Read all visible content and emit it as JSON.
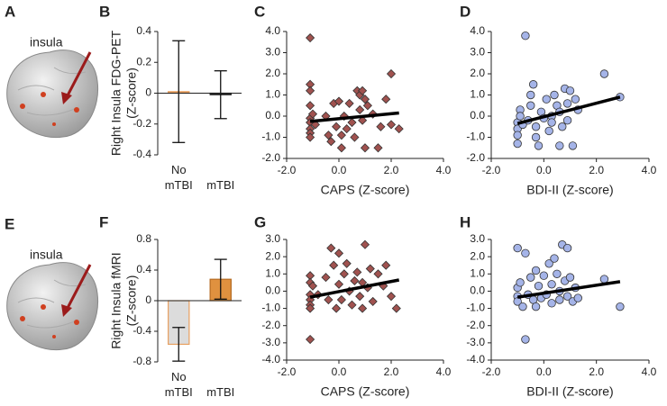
{
  "figure": {
    "brain_panels": [
      {
        "letter": "A",
        "label": "insula"
      },
      {
        "letter": "E",
        "label": "insula"
      }
    ]
  },
  "chart_data": [
    {
      "type": "bar",
      "panel": "B",
      "ylabel": [
        "Right Insula FDG-PET",
        "(Z-score)"
      ],
      "categories": [
        "No mTBI",
        "mTBI"
      ],
      "values": [
        0.01,
        -0.01
      ],
      "errors": [
        0.33,
        0.155
      ],
      "colors": [
        "#e8a060",
        "#222222"
      ],
      "edgecolors": [
        "#e8a060",
        "#222222"
      ],
      "ylim": [
        -0.4,
        0.4
      ],
      "yticks": [
        -0.4,
        -0.2,
        0,
        0.2,
        0.4
      ]
    },
    {
      "type": "scatter",
      "panel": "C",
      "xlabel": "CAPS (Z-score)",
      "marker": "diamond",
      "color": "#a0524f",
      "x": [
        -1.1,
        -1.1,
        -1.1,
        -1.1,
        -1.1,
        -1.1,
        -1.1,
        -1.1,
        -1.1,
        -1.0,
        -0.9,
        -0.5,
        -0.4,
        -0.3,
        -0.2,
        -0.1,
        0.0,
        0.1,
        0.1,
        0.2,
        0.3,
        0.4,
        0.5,
        0.6,
        0.7,
        0.8,
        0.8,
        0.9,
        0.9,
        1.0,
        1.0,
        1.1,
        1.3,
        1.5,
        1.6,
        1.8,
        2.0,
        2.0,
        2.3
      ],
      "values": [
        3.7,
        1.5,
        1.2,
        0.5,
        -0.1,
        -0.3,
        -0.6,
        -0.8,
        -1.0,
        0.1,
        -0.4,
        0.0,
        -0.9,
        -1.2,
        0.6,
        -0.5,
        0.7,
        -0.9,
        -1.5,
        0.0,
        -0.6,
        0.6,
        -0.3,
        -1.0,
        1.2,
        1.0,
        0.3,
        1.2,
        -0.2,
        0.8,
        -1.5,
        0.5,
        0.1,
        -1.5,
        -0.5,
        0.8,
        2.0,
        -0.4,
        -0.6
      ],
      "fit": {
        "x": [
          -1.1,
          2.3
        ],
        "y": [
          -0.25,
          0.15
        ]
      },
      "xlim": [
        -2,
        4
      ],
      "xticks": [
        {
          "value": -2,
          "label": "-2.0"
        },
        {
          "value": 0,
          "label": "0.0"
        },
        {
          "value": 2,
          "label": "2.0"
        },
        {
          "value": 4,
          "label": "4.0"
        }
      ],
      "ylim": [
        -2,
        4
      ],
      "yticks": [
        {
          "value": -2,
          "label": "-2.0"
        },
        {
          "value": -1,
          "label": "-1.0"
        },
        {
          "value": 0,
          "label": "0.0"
        },
        {
          "value": 1,
          "label": "1.0"
        },
        {
          "value": 2,
          "label": "2.0"
        },
        {
          "value": 3,
          "label": "3.0"
        },
        {
          "value": 4,
          "label": "4.0"
        }
      ]
    },
    {
      "type": "scatter",
      "panel": "D",
      "xlabel": "BDI-II (Z-score)",
      "marker": "circle",
      "color": "#a5b4e8",
      "x": [
        -1.0,
        -1.0,
        -1.0,
        -1.0,
        -0.9,
        -0.9,
        -0.8,
        -0.7,
        -0.6,
        -0.5,
        -0.5,
        -0.4,
        -0.3,
        -0.3,
        -0.2,
        -0.1,
        0.0,
        0.1,
        0.2,
        0.3,
        0.3,
        0.4,
        0.5,
        0.6,
        0.6,
        0.7,
        0.8,
        0.9,
        0.9,
        1.0,
        1.1,
        1.2,
        1.3,
        2.3,
        2.9
      ],
      "values": [
        -0.3,
        -0.6,
        -0.9,
        -1.3,
        0.3,
        0.0,
        -0.4,
        3.8,
        -0.2,
        1.0,
        0.5,
        1.5,
        -0.5,
        -1.0,
        -1.4,
        0.2,
        -0.1,
        0.8,
        -0.7,
        0.0,
        -0.3,
        1.0,
        0.5,
        -1.4,
        0.2,
        -0.5,
        1.3,
        0.6,
        -0.2,
        1.2,
        -1.4,
        0.8,
        0.3,
        2.0,
        0.9
      ],
      "fit": {
        "x": [
          -1.0,
          2.9
        ],
        "y": [
          -0.35,
          0.9
        ]
      },
      "xlim": [
        -2,
        4
      ],
      "xticks": [
        {
          "value": -2,
          "label": "-2.0"
        },
        {
          "value": 0,
          "label": "0.0"
        },
        {
          "value": 2,
          "label": "2.0"
        },
        {
          "value": 4,
          "label": "4.0"
        }
      ],
      "ylim": [
        -2,
        4
      ],
      "yticks": [
        {
          "value": -2,
          "label": "-2.0"
        },
        {
          "value": -1,
          "label": "-1.0"
        },
        {
          "value": 0,
          "label": "0.0"
        },
        {
          "value": 1,
          "label": "1.0"
        },
        {
          "value": 2,
          "label": "2.0"
        },
        {
          "value": 3,
          "label": "3.0"
        },
        {
          "value": 4,
          "label": "4.0"
        }
      ]
    },
    {
      "type": "bar",
      "panel": "F",
      "ylabel": [
        "Right Insula fMRI",
        "(Z-score)"
      ],
      "categories": [
        "No mTBI",
        "mTBI"
      ],
      "values": [
        -0.57,
        0.28
      ],
      "errors": [
        0.22,
        0.26
      ],
      "colors": [
        "#dcdcdc",
        "#e0913f"
      ],
      "edgecolors": [
        "#e8a060",
        "#b56c24"
      ],
      "ylim": [
        -0.8,
        0.8
      ],
      "yticks": [
        -0.8,
        -0.4,
        0,
        0.4,
        0.8
      ]
    },
    {
      "type": "scatter",
      "panel": "G",
      "xlabel": "CAPS (Z-score)",
      "marker": "diamond",
      "color": "#a0524f",
      "x": [
        -1.1,
        -1.1,
        -1.1,
        -1.1,
        -1.1,
        -1.1,
        -1.1,
        -1.0,
        -0.8,
        -0.5,
        -0.4,
        -0.3,
        -0.2,
        -0.1,
        0.0,
        0.0,
        0.1,
        0.2,
        0.3,
        0.4,
        0.5,
        0.6,
        0.7,
        0.8,
        0.9,
        0.9,
        1.0,
        1.1,
        1.2,
        1.3,
        1.5,
        1.7,
        1.8,
        2.0,
        2.2
      ],
      "values": [
        0.9,
        0.5,
        -0.2,
        -0.5,
        -0.8,
        -1.0,
        -2.8,
        0.3,
        -0.2,
        0.8,
        -0.5,
        2.5,
        1.5,
        -1.0,
        2.2,
        0.4,
        -0.5,
        1.0,
        1.6,
        0.0,
        -0.8,
        0.6,
        1.1,
        -0.3,
        0.5,
        -1.0,
        2.7,
        0.2,
        1.3,
        -0.6,
        1.0,
        0.3,
        1.5,
        -0.3,
        -1.0
      ],
      "fit": {
        "x": [
          -1.1,
          2.3
        ],
        "y": [
          -0.35,
          0.65
        ]
      },
      "xlim": [
        -2,
        4
      ],
      "xticks": [
        {
          "value": -2,
          "label": "-2.0"
        },
        {
          "value": 0,
          "label": "0.0"
        },
        {
          "value": 2,
          "label": "2.0"
        },
        {
          "value": 4,
          "label": "4.0"
        }
      ],
      "ylim": [
        -4,
        3
      ],
      "yticks": [
        {
          "value": -4,
          "label": "-4.0"
        },
        {
          "value": -3,
          "label": "-3.0"
        },
        {
          "value": -2,
          "label": "-2.0"
        },
        {
          "value": -1,
          "label": "-1.0"
        },
        {
          "value": 0,
          "label": "0.0"
        },
        {
          "value": 1,
          "label": "1.0"
        },
        {
          "value": 2,
          "label": "2.0"
        },
        {
          "value": 3,
          "label": "3.0"
        }
      ]
    },
    {
      "type": "scatter",
      "panel": "H",
      "xlabel": "BDI-II (Z-score)",
      "marker": "circle",
      "color": "#a5b4e8",
      "x": [
        -1.0,
        -1.0,
        -1.0,
        -1.0,
        -0.9,
        -0.8,
        -0.7,
        -0.7,
        -0.6,
        -0.5,
        -0.4,
        -0.3,
        -0.3,
        -0.2,
        -0.1,
        0.0,
        0.1,
        0.2,
        0.3,
        0.3,
        0.4,
        0.5,
        0.6,
        0.6,
        0.7,
        0.8,
        0.9,
        0.9,
        1.0,
        1.1,
        1.2,
        1.3,
        2.3,
        2.9
      ],
      "values": [
        0.2,
        -0.3,
        -0.6,
        2.5,
        0.5,
        -0.9,
        2.2,
        -2.8,
        -0.2,
        0.8,
        -0.5,
        1.2,
        -0.9,
        0.3,
        -0.4,
        0.9,
        -0.2,
        1.6,
        0.4,
        -0.7,
        1.9,
        1.0,
        0.0,
        -0.5,
        2.7,
        0.6,
        -0.3,
        2.5,
        0.8,
        -0.6,
        0.2,
        -0.4,
        0.7,
        -0.9
      ],
      "fit": {
        "x": [
          -1.0,
          2.9
        ],
        "y": [
          -0.35,
          0.55
        ]
      },
      "xlim": [
        -2,
        4
      ],
      "xticks": [
        {
          "value": -2,
          "label": "-2.0"
        },
        {
          "value": 0,
          "label": "0.0"
        },
        {
          "value": 2,
          "label": "2.0"
        },
        {
          "value": 4,
          "label": "4.0"
        }
      ],
      "ylim": [
        -4,
        3
      ],
      "yticks": [
        {
          "value": -4,
          "label": "-4.0"
        },
        {
          "value": -3,
          "label": "-3.0"
        },
        {
          "value": -2,
          "label": "-2.0"
        },
        {
          "value": -1,
          "label": "-1.0"
        },
        {
          "value": 0,
          "label": "0.0"
        },
        {
          "value": 1,
          "label": "1.0"
        },
        {
          "value": 2,
          "label": "2.0"
        },
        {
          "value": 3,
          "label": "3.0"
        }
      ]
    }
  ]
}
